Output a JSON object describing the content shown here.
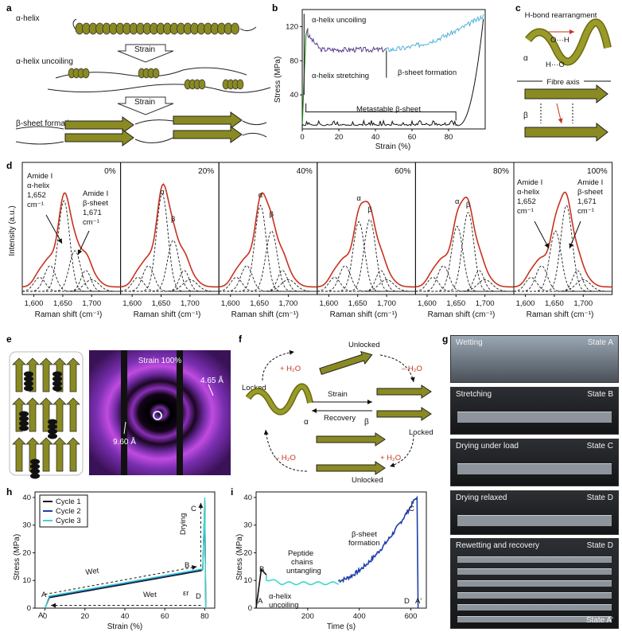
{
  "panel_labels": {
    "a": "a",
    "b": "b",
    "c": "c",
    "d": "d",
    "e": "e",
    "f": "f",
    "g": "g",
    "h": "h",
    "i": "i"
  },
  "panel_a": {
    "alpha_helix": "α-helix",
    "uncoiling": "α-helix uncoiling",
    "beta_formation": "β-sheet formation",
    "strain_arrow_1": "Strain",
    "strain_arrow_2": "Strain"
  },
  "panel_b": {
    "ylabel": "Stress (MPa)",
    "xlabel": "Strain (%)",
    "ann_uncoiling": "α-helix uncoiling",
    "ann_stretching": "α-helix stretching",
    "ann_beta": "β-sheet formation",
    "ann_metastable": "Metastable β-sheet",
    "yticks": [
      "40",
      "80",
      "120"
    ],
    "xticks": [
      "0",
      "20",
      "40",
      "60",
      "80"
    ],
    "colors": {
      "stretch": "#2a8a2a",
      "uncoil": "#5b3f8f",
      "beta": "#4fb3d9",
      "metastable": "#111111"
    }
  },
  "panel_c": {
    "hbond": "H-bond rearrangment",
    "fibre_axis": "Fibre axis",
    "alpha": "α",
    "beta": "β",
    "o_h_1": "O···H",
    "h_o_1": "H···O"
  },
  "panel_d": {
    "ylabel": "Intensity (a.u.)",
    "xlabel": "Raman shift (cm⁻¹)",
    "percents": [
      "0%",
      "20%",
      "40%",
      "60%",
      "80%",
      "100%"
    ],
    "xticks": [
      "1,600",
      "1,650",
      "1,700"
    ],
    "left_ann_alpha": [
      "Amide I",
      "α-helix",
      "1,652",
      "cm⁻¹"
    ],
    "left_ann_beta": [
      "Amide I",
      "β-sheet",
      "1,671",
      "cm⁻¹"
    ],
    "alpha_sym": "α",
    "beta_sym": "β",
    "line_color": "#c8321e"
  },
  "panel_e": {
    "title": "Strain 100%",
    "d1": "4.65 Å",
    "d2": "9.60 Å"
  },
  "panel_f": {
    "unlocked_top": "Unlocked",
    "unlocked_bottom": "Unlocked",
    "locked_left": "Locked",
    "locked_right": "Locked",
    "strain": "Strain",
    "recovery": "Recovery",
    "plus_h2o_1": "+ H₂O",
    "minus_h2o_1": "– H₂O",
    "minus_h2o_2": "– H₂O",
    "plus_h2o_2": "+ H₂O",
    "alpha": "α",
    "beta": "β"
  },
  "panel_g": {
    "photos": [
      {
        "caption": "Wetting",
        "state": "State A"
      },
      {
        "caption": "Stretching",
        "state": "State B"
      },
      {
        "caption": "Drying under load",
        "state": "State C"
      },
      {
        "caption": "Drying relaxed",
        "state": "State D"
      },
      {
        "caption": "Rewetting and recovery",
        "state": "State D"
      }
    ],
    "final_state": "State A'"
  },
  "panel_h": {
    "ylabel": "Stress (MPa)",
    "xlabel": "Strain (%)",
    "legend": [
      "Cycle 1",
      "Cycle 2",
      "Cycle 3"
    ],
    "colors": [
      "#111111",
      "#1f3fa8",
      "#3fd6c8"
    ],
    "yticks": [
      "0",
      "10",
      "20",
      "30",
      "40"
    ],
    "xticks": [
      "0",
      "20",
      "40",
      "60",
      "80"
    ],
    "wet_top": "Wet",
    "wet_bottom": "Wet",
    "drying": "Drying",
    "points": [
      "A",
      "A'",
      "B",
      "C",
      "D",
      "εr"
    ]
  },
  "panel_i": {
    "ylabel": "Stress (MPa)",
    "xlabel": "Time (s)",
    "yticks": [
      "0",
      "10",
      "20",
      "30",
      "40"
    ],
    "xticks": [
      "200",
      "400",
      "600"
    ],
    "ann_untangle": [
      "Peptide",
      "chains",
      "untangling"
    ],
    "ann_beta": [
      "β-sheet",
      "formation"
    ],
    "ann_alpha": [
      "α-helix",
      "uncoiling"
    ],
    "points": [
      "A",
      "B",
      "C",
      "D",
      "A'"
    ],
    "colors": {
      "black": "#111111",
      "teal": "#3fd6c8",
      "blue": "#1f3fa8"
    }
  }
}
